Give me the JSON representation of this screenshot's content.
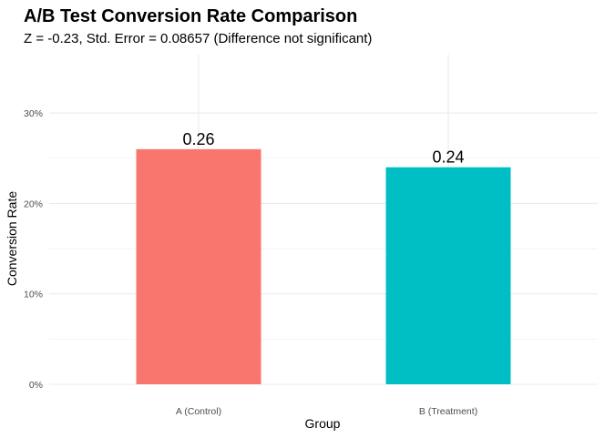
{
  "chart_data": {
    "type": "bar",
    "title": "A/B Test Conversion Rate Comparison",
    "subtitle": "Z = -0.23, Std. Error = 0.08657 (Difference not significant)",
    "xlabel": "Group",
    "ylabel": "Conversion Rate",
    "categories": [
      "A (Control)",
      "B (Treatment)"
    ],
    "values": [
      0.26,
      0.24
    ],
    "data_labels": [
      "0.26",
      "0.24"
    ],
    "colors": [
      "#F8766D",
      "#00BFC4"
    ],
    "ylim": [
      0,
      0.35
    ],
    "yticks": [
      0,
      0.1,
      0.2,
      0.3
    ],
    "ytick_labels": [
      "0%",
      "10%",
      "20%",
      "30%"
    ],
    "grid": true,
    "legend": "none"
  }
}
